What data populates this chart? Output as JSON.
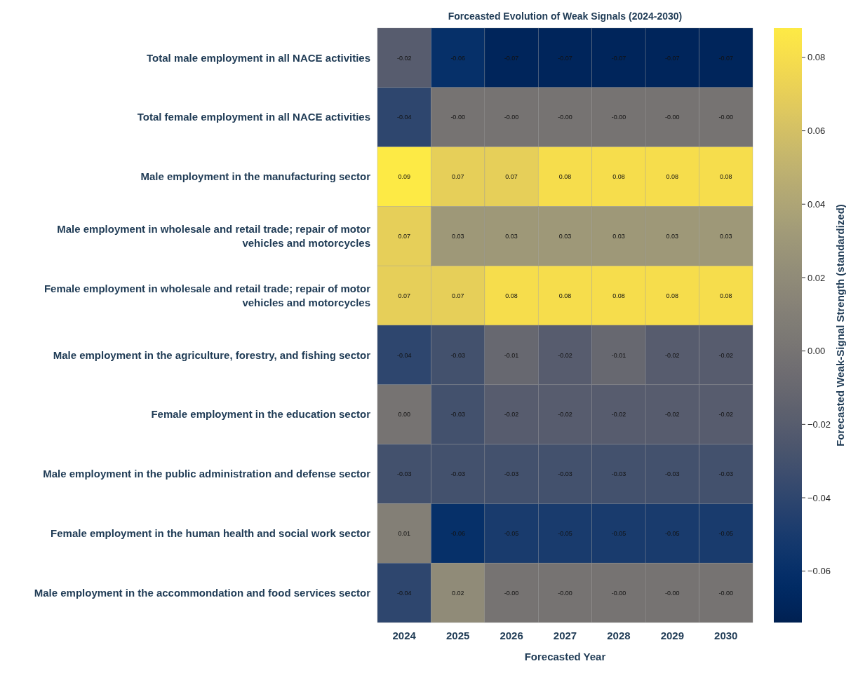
{
  "chart_data": {
    "type": "heatmap",
    "title": "Forceasted Evolution of Weak Signals (2024-2030)",
    "xlabel": "Forecasted Year",
    "clabel": "Forecasted Weak-Signal Strength (standardized)",
    "categories": [
      "2024",
      "2025",
      "2026",
      "2027",
      "2028",
      "2029",
      "2030"
    ],
    "y_categories": [
      "Total male employment in all NACE activities",
      "Total female employment in all NACE activities",
      "Male employment in the manufacturing sector",
      "Male employment in wholesale and retail trade; repair of motor vehicles and motorcycles",
      "Female employment in wholesale and retail trade; repair of motor vehicles and motorcycles",
      "Male employment in the agriculture, forestry, and fishing sector",
      "Female employment in the education sector",
      "Male employment in the public administration and defense sector",
      "Female employment in the human health and social work sector",
      "Male employment in the accommondation and food services sector"
    ],
    "cells": [
      [
        -0.02,
        -0.06,
        -0.07,
        -0.07,
        -0.07,
        -0.07,
        -0.07
      ],
      [
        -0.04,
        0,
        0,
        0,
        0,
        0,
        0
      ],
      [
        0.09,
        0.07,
        0.07,
        0.08,
        0.08,
        0.08,
        0.08
      ],
      [
        0.07,
        0.03,
        0.03,
        0.03,
        0.03,
        0.03,
        0.03
      ],
      [
        0.07,
        0.07,
        0.08,
        0.08,
        0.08,
        0.08,
        0.08
      ],
      [
        -0.04,
        -0.03,
        -0.01,
        -0.02,
        -0.01,
        -0.02,
        -0.02
      ],
      [
        0,
        -0.03,
        -0.02,
        -0.02,
        -0.02,
        -0.02,
        -0.02
      ],
      [
        -0.03,
        -0.03,
        -0.03,
        -0.03,
        -0.03,
        -0.03,
        -0.03
      ],
      [
        0.01,
        -0.06,
        -0.05,
        -0.05,
        -0.05,
        -0.05,
        -0.05
      ],
      [
        -0.04,
        0.02,
        0,
        0,
        0,
        0,
        0
      ]
    ],
    "cell_labels": [
      [
        "-0.02",
        "-0.06",
        "-0.07",
        "-0.07",
        "-0.07",
        "-0.07",
        "-0.07"
      ],
      [
        "-0.04",
        "-0.00",
        "-0.00",
        "-0.00",
        "-0.00",
        "-0.00",
        "-0.00"
      ],
      [
        "0.09",
        "0.07",
        "0.07",
        "0.08",
        "0.08",
        "0.08",
        "0.08"
      ],
      [
        "0.07",
        "0.03",
        "0.03",
        "0.03",
        "0.03",
        "0.03",
        "0.03"
      ],
      [
        "0.07",
        "0.07",
        "0.08",
        "0.08",
        "0.08",
        "0.08",
        "0.08"
      ],
      [
        "-0.04",
        "-0.03",
        "-0.01",
        "-0.02",
        "-0.01",
        "-0.02",
        "-0.02"
      ],
      [
        "0.00",
        "-0.03",
        "-0.02",
        "-0.02",
        "-0.02",
        "-0.02",
        "-0.02"
      ],
      [
        "-0.03",
        "-0.03",
        "-0.03",
        "-0.03",
        "-0.03",
        "-0.03",
        "-0.03"
      ],
      [
        "0.01",
        "-0.06",
        "-0.05",
        "-0.05",
        "-0.05",
        "-0.05",
        "-0.05"
      ],
      [
        "-0.04",
        "0.02",
        "-0.00",
        "-0.00",
        "-0.00",
        "-0.00",
        "-0.00"
      ]
    ],
    "clim": [
      -0.074,
      0.088
    ],
    "cticks": [
      {
        "value": -0.06,
        "label": "−0.06"
      },
      {
        "value": -0.04,
        "label": "−0.04"
      },
      {
        "value": -0.02,
        "label": "−0.02"
      },
      {
        "value": 0,
        "label": "0.00"
      },
      {
        "value": 0.02,
        "label": "0.02"
      },
      {
        "value": 0.04,
        "label": "0.04"
      },
      {
        "value": 0.06,
        "label": "0.06"
      },
      {
        "value": 0.08,
        "label": "0.08"
      }
    ]
  }
}
